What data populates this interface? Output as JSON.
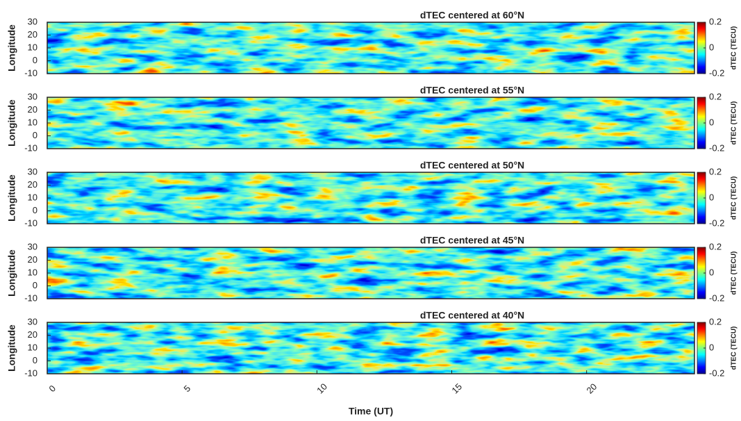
{
  "chart_data": [
    {
      "type": "heatmap",
      "title": "dTEC centered at 60°N",
      "ylabel": "Longitude",
      "ylim": [
        -10,
        30
      ],
      "yticks": [
        -10,
        0,
        10,
        20,
        30
      ],
      "xlim": [
        0,
        24
      ],
      "colorbar": {
        "label": "dTEC (TECU)",
        "lim": [
          -0.2,
          0.2
        ],
        "ticks": [
          -0.2,
          0,
          0.2
        ]
      }
    },
    {
      "type": "heatmap",
      "title": "dTEC centered at 55°N",
      "ylabel": "Longitude",
      "ylim": [
        -10,
        30
      ],
      "yticks": [
        -10,
        0,
        10,
        20,
        30
      ],
      "xlim": [
        0,
        24
      ],
      "colorbar": {
        "label": "dTEC (TECU)",
        "lim": [
          -0.2,
          0.2
        ],
        "ticks": [
          -0.2,
          0,
          0.2
        ]
      }
    },
    {
      "type": "heatmap",
      "title": "dTEC centered at 50°N",
      "ylabel": "Longitude",
      "ylim": [
        -10,
        30
      ],
      "yticks": [
        -10,
        0,
        10,
        20,
        30
      ],
      "xlim": [
        0,
        24
      ],
      "colorbar": {
        "label": "dTEC (TECU)",
        "lim": [
          -0.2,
          0.2
        ],
        "ticks": [
          -0.2,
          0,
          0.2
        ]
      }
    },
    {
      "type": "heatmap",
      "title": "dTEC centered at 45°N",
      "ylabel": "Longitude",
      "ylim": [
        -10,
        30
      ],
      "yticks": [
        -10,
        0,
        10,
        20,
        30
      ],
      "xlim": [
        0,
        24
      ],
      "colorbar": {
        "label": "dTEC (TECU)",
        "lim": [
          -0.2,
          0.2
        ],
        "ticks": [
          -0.2,
          0,
          0.2
        ]
      }
    },
    {
      "type": "heatmap",
      "title": "dTEC centered at 40°N",
      "ylabel": "Longitude",
      "ylim": [
        -10,
        30
      ],
      "yticks": [
        -10,
        0,
        10,
        20,
        30
      ],
      "xlim": [
        0,
        24
      ],
      "xticks": [
        0,
        5,
        10,
        15,
        20
      ],
      "xlabel": "Time (UT)",
      "colorbar": {
        "label": "dTEC (TECU)",
        "lim": [
          -0.2,
          0.2
        ],
        "ticks": [
          -0.2,
          0,
          0.2
        ]
      }
    }
  ]
}
